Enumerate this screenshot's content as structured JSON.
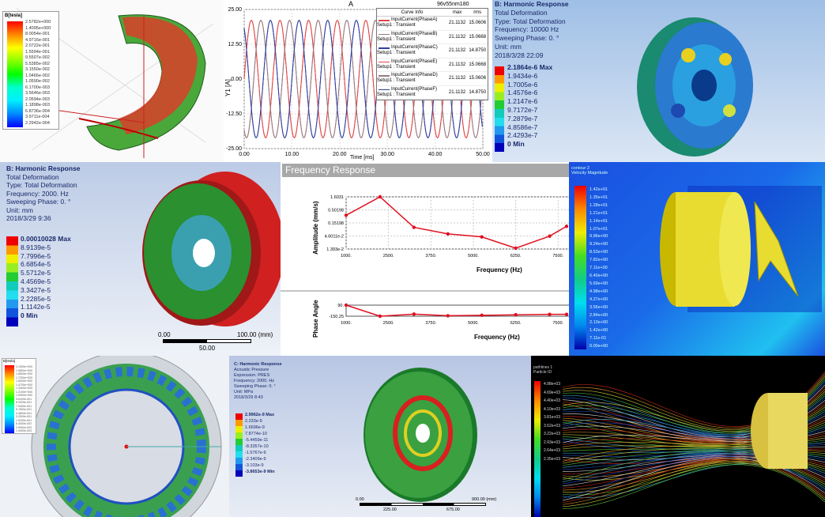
{
  "panel1": {
    "legend_title": "B[tesla]",
    "legend_values": [
      "2.5782e+000",
      "1.4095e+000",
      "8.0054e-001",
      "4.9716e-001",
      "2.0722e-001",
      "1.5594e-001",
      "9.5507e-002",
      "5.5385e-002",
      "3.1550e-002",
      "1.0466e-002",
      "1.0590e-002",
      "6.1700e-003",
      "3.5646e-003",
      "2.0594e-003",
      "1.1898e-003",
      "6.8736e-004",
      "3.9711e-004",
      "2.2942e-004"
    ]
  },
  "panel2": {
    "title": "A",
    "subtitle": "96v55nm180",
    "legend_headers": [
      "Curve Info",
      "max",
      "rms"
    ],
    "chart_data": {
      "type": "line",
      "xlabel": "Time [ms]",
      "ylabel": "Y1 [A]",
      "xlim": [
        0,
        50
      ],
      "ylim": [
        -25,
        25
      ],
      "xticks": [
        "0.00",
        "10.00",
        "20.00",
        "30.00",
        "40.00",
        "50.00"
      ],
      "yticks": [
        "25.00",
        "12.50",
        "0.00",
        "-12.50",
        "-25.00"
      ],
      "grid": true,
      "legend_placement": "top-right",
      "period_ms": 6,
      "series": [
        {
          "name": "InputCurrent(PhaseA)",
          "setup": "Setup1 : Transient",
          "max": "21.1132",
          "rms": "15.0606",
          "amplitude": 21.1132,
          "phase_deg": 0,
          "color": "#e04848"
        },
        {
          "name": "InputCurrent(PhaseB)",
          "setup": "Setup1 : Transient",
          "max": "21.1132",
          "rms": "15.0668",
          "amplitude": 21.1132,
          "phase_deg": -120,
          "color": "#9a7a80"
        },
        {
          "name": "InputCurrent(PhaseC)",
          "setup": "Setup1 : Transient",
          "max": "21.1132",
          "rms": "14.8750",
          "amplitude": 21.1132,
          "phase_deg": -240,
          "color": "#3040a0"
        },
        {
          "name": "InputCurrent(PhaseE)",
          "setup": "Setup1 : Transient",
          "max": "21.1132",
          "rms": "15.0668",
          "amplitude": 21.1132,
          "phase_deg": 0,
          "color": "#e04848"
        },
        {
          "name": "InputCurrent(PhaseD)",
          "setup": "Setup1 : Transient",
          "max": "21.1132",
          "rms": "15.0606",
          "amplitude": 21.1132,
          "phase_deg": -120,
          "color": "#9a7a80"
        },
        {
          "name": "InputCurrent(PhaseF)",
          "setup": "Setup1 : Transient",
          "max": "21.1132",
          "rms": "14.8750",
          "amplitude": 21.1132,
          "phase_deg": -240,
          "color": "#3040a0"
        }
      ]
    }
  },
  "panel3": {
    "lines": [
      "B: Harmonic Response",
      "Total Deformation",
      "Type: Total Deformation",
      "Frequency: 10000 Hz",
      "Sweeping Phase: 0. °",
      "Unit: mm",
      "2018/3/28 22:09"
    ],
    "legend_values": [
      "2.1864e-6 Max",
      "1.9434e-6",
      "1.7005e-6",
      "1.4576e-6",
      "1.2147e-6",
      "9.7172e-7",
      "7.2879e-7",
      "4.8586e-7",
      "2.4293e-7",
      "0 Min"
    ]
  },
  "panel4": {
    "lines": [
      "B: Harmonic Response",
      "Total Deformation",
      "Type: Total Deformation",
      "Frequency: 2000. Hz",
      "Sweeping Phase: 0. °",
      "Unit: mm",
      "2018/3/29 9:36"
    ],
    "legend_values": [
      "0.00010028 Max",
      "8.9139e-5",
      "7.7996e-5",
      "6.6854e-5",
      "5.5712e-5",
      "4.4569e-5",
      "3.3427e-5",
      "2.2285e-5",
      "1.1142e-5",
      "0 Min"
    ],
    "scale": {
      "start": "0.00",
      "end": "100.00 (mm)",
      "mid": "50.00"
    }
  },
  "panel5": {
    "header": "Frequency Response",
    "chart_data": [
      {
        "type": "line",
        "xlabel": "Frequency (Hz)",
        "ylabel": "Amplitude (mm/s)",
        "yscale": "log",
        "xticks": [
          "1000.",
          "2500.",
          "3750.",
          "5000.",
          "6250.",
          "7500."
        ],
        "yticks": [
          "1.6031",
          "0.50198",
          "0.15198",
          "4.6011e-2",
          "1.393e-2"
        ],
        "xlim": [
          1000,
          7500
        ],
        "grid": true,
        "color": "#e01020",
        "x": [
          1000,
          2000,
          3000,
          4000,
          5000,
          6000,
          7000,
          7500
        ],
        "y": [
          0.3,
          1.6031,
          0.1,
          0.055,
          0.042,
          0.015,
          0.045,
          0.11
        ]
      },
      {
        "type": "line",
        "xlabel": "Frequency (Hz)",
        "ylabel": "Phase Angle",
        "xticks": [
          "1000.",
          "2500.",
          "3750.",
          "5000.",
          "6250.",
          "7500."
        ],
        "yticks": [
          "90.",
          "-150.25"
        ],
        "xlim": [
          1000,
          7500
        ],
        "ylim": [
          -150.25,
          90
        ],
        "color": "#e01020",
        "x": [
          1000,
          2000,
          3000,
          4000,
          5000,
          6000,
          7000,
          7500
        ],
        "y": [
          90,
          -150.25,
          -105,
          -140,
          -130,
          -120,
          -110,
          -110
        ]
      }
    ]
  },
  "panel6": {
    "title_lines": [
      "contour 2",
      "Velocity Magnitude"
    ],
    "legend_values": [
      "1.42e+01",
      "1.35e+01",
      "1.28e+01",
      "1.21e+01",
      "1.14e+01",
      "1.07e+01",
      "9.96e+00",
      "9.24e+00",
      "8.53e+00",
      "7.82e+00",
      "7.11e+00",
      "6.40e+00",
      "5.69e+00",
      "4.98e+00",
      "4.27e+00",
      "3.56e+00",
      "2.84e+00",
      "2.13e+00",
      "1.42e+00",
      "7.11e-01",
      "0.00e+00"
    ]
  },
  "panel7": {
    "legend_title": "B[tesla]",
    "legend_values": [
      "2.1000e+000",
      "1.9800e+000",
      "1.8500e+000",
      "1.7200e+000",
      "1.6000e+000",
      "1.4700e+000",
      "1.3400e+000",
      "1.2100e+000",
      "1.0900e+000",
      "9.6100e-001",
      "8.3200e-001",
      "7.0400e-001",
      "5.7600e-001",
      "4.4800e-001",
      "3.2000e-001",
      "1.9200e-001",
      "6.4000e-002",
      "2.9000e-003",
      "1.9400e-003"
    ]
  },
  "panel8": {
    "lines": [
      "C: Harmonic Response",
      "Acoustic Pressure",
      "Expression: PRES",
      "Frequency: 2000. Hz",
      "Sweeping Phase: 0. °",
      "Unit: MPa",
      "2018/3/29 8:43"
    ],
    "legend_values": [
      "2.9962e-9 Max",
      "2.233e-9",
      "1.6696e-9",
      "7.8774e-10",
      "-5.4459e-11",
      "-8.3357e-10",
      "-1.5767e-9",
      "-2.3409e-9",
      "-3.103e-9",
      "-3.8653e-9 Min"
    ],
    "scale": {
      "start": "0.00",
      "end": "900.00 (mm)",
      "tick1": "225.00",
      "tick2": "675.00"
    }
  },
  "panel9": {
    "title_lines": [
      "pathlines 1",
      "Particle ID"
    ],
    "legend_values": [
      "4.98e+03",
      "4.69e+03",
      "4.40e+03",
      "4.10e+03",
      "3.81e+03",
      "3.52e+03",
      "3.22e+03",
      "2.93e+03",
      "2.64e+03",
      "2.35e+03"
    ]
  }
}
